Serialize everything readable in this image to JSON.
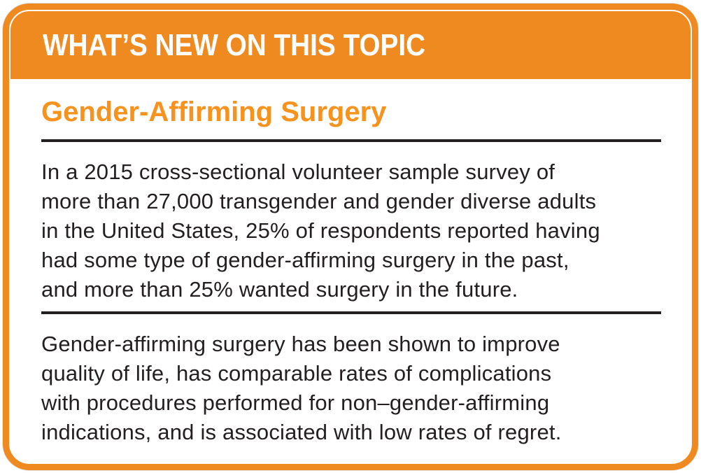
{
  "colors": {
    "accent_orange": "#EF8A21",
    "heading_orange": "#F6921E",
    "text_black": "#231F20",
    "header_text_white": "#FFFFFF"
  },
  "header": {
    "title": "WHAT’S NEW ON THIS TOPIC"
  },
  "main": {
    "heading": "Gender-Affirming Surgery",
    "paragraph_1": [
      "In a 2015 cross-sectional volunteer sample survey of",
      "more than 27,000 transgender and gender diverse adults",
      "in the United States, 25% of respondents reported having",
      "had some type of gender-affirming surgery in the past,",
      "and more than 25% wanted surgery in the future."
    ],
    "paragraph_2": [
      "Gender-affirming surgery has been shown to improve",
      "quality of life, has comparable rates of complications",
      "with procedures performed for non–gender-affirming",
      "indications, and is associated with low rates of regret."
    ]
  }
}
